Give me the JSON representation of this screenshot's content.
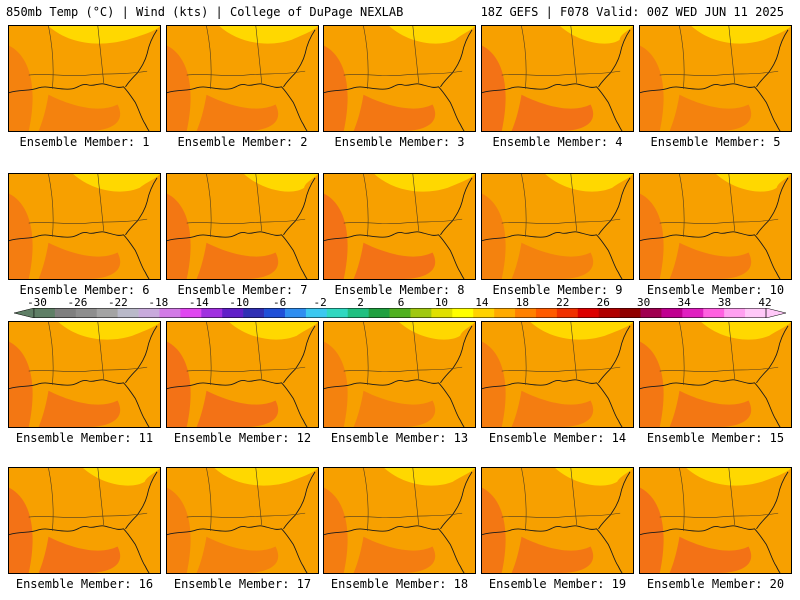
{
  "header": {
    "left": "850mb Temp (°C) | Wind (kts) | College of DuPage NEXLAB",
    "right": "18Z GEFS | F078 Valid: 00Z WED JUN 11 2025"
  },
  "panels": [
    {
      "caption": "Ensemble Member: 1"
    },
    {
      "caption": "Ensemble Member: 2"
    },
    {
      "caption": "Ensemble Member: 3"
    },
    {
      "caption": "Ensemble Member: 4"
    },
    {
      "caption": "Ensemble Member: 5"
    },
    {
      "caption": "Ensemble Member: 6"
    },
    {
      "caption": "Ensemble Member: 7"
    },
    {
      "caption": "Ensemble Member: 8"
    },
    {
      "caption": "Ensemble Member: 9"
    },
    {
      "caption": "Ensemble Member: 10"
    },
    {
      "caption": "Ensemble Member: 11"
    },
    {
      "caption": "Ensemble Member: 12"
    },
    {
      "caption": "Ensemble Member: 13"
    },
    {
      "caption": "Ensemble Member: 14"
    },
    {
      "caption": "Ensemble Member: 15"
    },
    {
      "caption": "Ensemble Member: 16"
    },
    {
      "caption": "Ensemble Member: 17"
    },
    {
      "caption": "Ensemble Member: 18"
    },
    {
      "caption": "Ensemble Member: 19"
    },
    {
      "caption": "Ensemble Member: 20"
    }
  ],
  "colorbar": {
    "tick_labels": [
      "-30",
      "-26",
      "-22",
      "-18",
      "-14",
      "-10",
      "-6",
      "-2",
      "2",
      "6",
      "10",
      "14",
      "18",
      "22",
      "26",
      "30",
      "34",
      "38",
      "42"
    ],
    "colors": [
      "#5f7f66",
      "#7f7f7f",
      "#8e8e8e",
      "#a4a4a4",
      "#b9b9c9",
      "#c8aadc",
      "#d27ae6",
      "#e046f0",
      "#a030e0",
      "#6020c8",
      "#3030b4",
      "#2050d8",
      "#2f8ef0",
      "#3cc8f0",
      "#30d8c0",
      "#20c080",
      "#20a040",
      "#50b020",
      "#a0c810",
      "#e0e000",
      "#ffff00",
      "#ffd200",
      "#ffaa00",
      "#ff8000",
      "#ff5a00",
      "#f03000",
      "#dc0000",
      "#b00000",
      "#900000",
      "#a00050",
      "#c00090",
      "#e020c0",
      "#ff60e0",
      "#ffa0f0",
      "#ffc8f8"
    ]
  }
}
